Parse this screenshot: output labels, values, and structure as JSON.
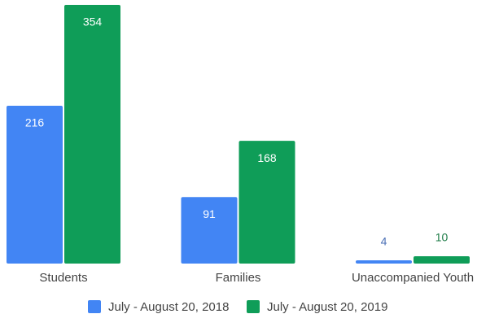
{
  "chart_data": {
    "type": "bar",
    "categories": [
      "Students",
      "Families",
      "Unaccompanied Youth"
    ],
    "series": [
      {
        "name": "July - August 20, 2018",
        "values": [
          216,
          91,
          4
        ],
        "color": "#4285F4"
      },
      {
        "name": "July - August 20, 2019",
        "values": [
          354,
          168,
          10
        ],
        "color": "#0F9D58"
      }
    ],
    "title": "",
    "xlabel": "",
    "ylabel": "",
    "ylim": [
      0,
      354
    ],
    "grid": false,
    "legend": "bottom-center",
    "data_labels": true
  }
}
